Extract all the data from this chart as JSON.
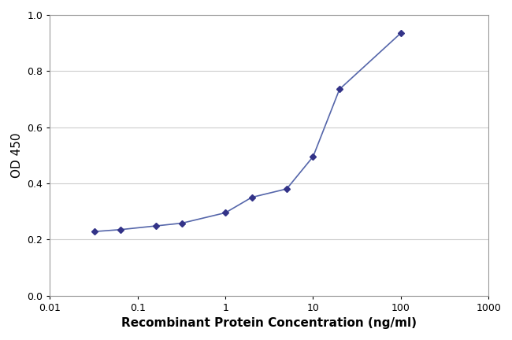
{
  "x_values": [
    0.032,
    0.064,
    0.16,
    0.32,
    1.0,
    2.0,
    5.0,
    10.0,
    20.0,
    100.0
  ],
  "y_values": [
    0.228,
    0.235,
    0.248,
    0.258,
    0.295,
    0.35,
    0.38,
    0.495,
    0.735,
    0.935
  ],
  "line_color": "#5566aa",
  "marker_color": "#333388",
  "marker": "D",
  "marker_size": 4,
  "line_width": 1.2,
  "xlabel": "Recombinant Protein Concentration (ng/ml)",
  "ylabel": "OD 450",
  "xlim": [
    0.01,
    1000
  ],
  "ylim": [
    0.0,
    1.0
  ],
  "yticks": [
    0.0,
    0.2,
    0.4,
    0.6,
    0.8,
    1.0
  ],
  "background_color": "#ffffff",
  "plot_bg_color": "#ffffff",
  "xlabel_fontsize": 11,
  "ylabel_fontsize": 11,
  "tick_fontsize": 9,
  "xlabel_color": "#000000",
  "ylabel_color": "#000000",
  "grid_color": "#cccccc"
}
